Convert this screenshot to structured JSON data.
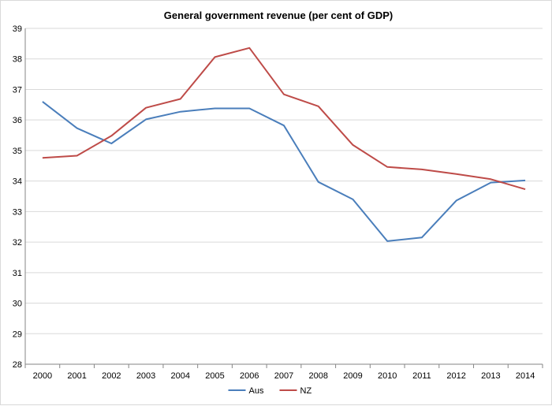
{
  "chart_data": {
    "type": "line",
    "title": "General government revenue (per cent of GDP)",
    "xlabel": "",
    "ylabel": "",
    "categories": [
      "2000",
      "2001",
      "2002",
      "2003",
      "2004",
      "2005",
      "2006",
      "2007",
      "2008",
      "2009",
      "2010",
      "2011",
      "2012",
      "2013",
      "2014"
    ],
    "ylim": [
      28,
      39
    ],
    "yticks": [
      28,
      29,
      30,
      31,
      32,
      33,
      34,
      35,
      36,
      37,
      38,
      39
    ],
    "grid": true,
    "legend_position": "bottom",
    "series": [
      {
        "name": "Aus",
        "color": "#4a7ebb",
        "values": [
          36.6,
          35.73,
          35.23,
          36.02,
          36.27,
          36.38,
          36.38,
          35.82,
          33.97,
          33.4,
          32.03,
          32.15,
          33.36,
          33.95,
          34.02
        ]
      },
      {
        "name": "NZ",
        "color": "#be4b48",
        "values": [
          34.76,
          34.83,
          35.48,
          36.4,
          36.69,
          38.06,
          38.36,
          36.84,
          36.45,
          35.18,
          34.46,
          34.38,
          34.23,
          34.06,
          33.73
        ]
      }
    ]
  }
}
